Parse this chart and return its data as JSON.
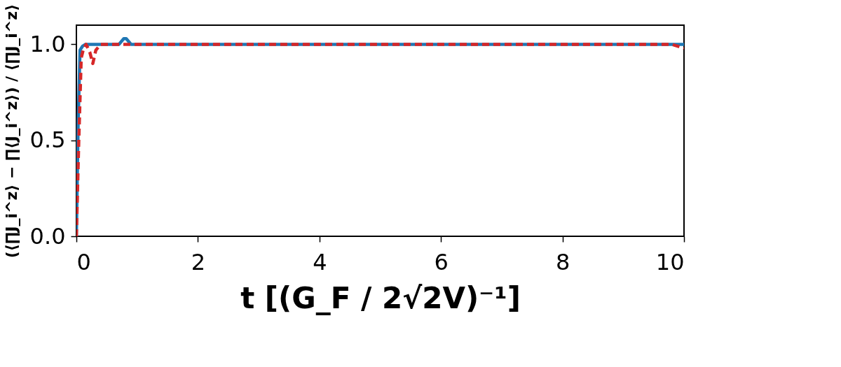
{
  "chart_data": {
    "type": "line",
    "xlabel": "t [(G_F / 2√2V)⁻¹]",
    "ylabel": "(⟨∏J_i^z⟩ − ∏⟨J_i^z⟩) / ⟨∏J_i^z⟩",
    "xlim": [
      0,
      10
    ],
    "ylim": [
      0,
      1.1
    ],
    "xticks": [
      0,
      2,
      4,
      6,
      8,
      10
    ],
    "yticks": [
      {
        "value": 0,
        "label": "0.0"
      },
      {
        "value": 0.5,
        "label": "0.5"
      },
      {
        "value": 1,
        "label": "1.0"
      }
    ],
    "grid": false,
    "series": [
      {
        "color": "#1f77b4",
        "line_style": "solid",
        "x": [
          0,
          0.03,
          0.06,
          0.1,
          0.15,
          0.7,
          0.78,
          0.82,
          0.9,
          1.5,
          3,
          5,
          7,
          9,
          10
        ],
        "values": [
          0,
          0.6,
          0.97,
          0.99,
          1.0,
          1.0,
          1.03,
          1.03,
          1.0,
          1.0,
          1.0,
          1.0,
          1.0,
          1.0,
          1.0
        ]
      },
      {
        "color": "#d62728",
        "line_style": "dashed",
        "x": [
          0,
          0.04,
          0.08,
          0.12,
          0.16,
          0.22,
          0.27,
          0.32,
          0.4,
          0.8,
          1.5,
          3,
          5,
          7,
          9,
          9.8,
          10
        ],
        "values": [
          0,
          0.5,
          0.93,
          0.98,
          1.0,
          0.96,
          0.9,
          0.97,
          1.0,
          1.0,
          1.0,
          1.0,
          1.0,
          1.0,
          1.0,
          1.0,
          0.98
        ]
      }
    ]
  }
}
